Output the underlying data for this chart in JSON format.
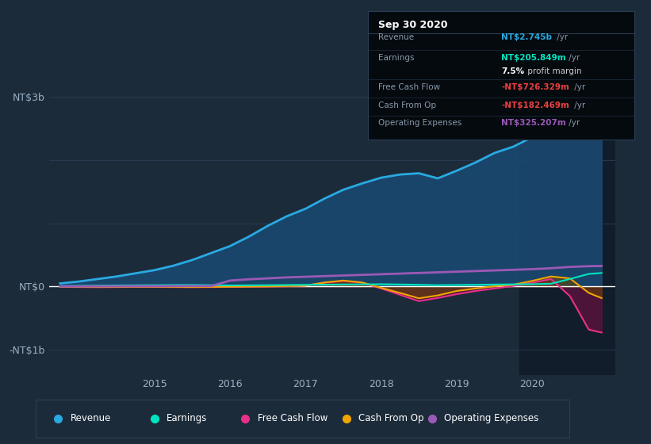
{
  "bg_color": "#1c2b3a",
  "plot_bg_color": "#1c2b3a",
  "grid_color": "#2a3f55",
  "ytick_labels": [
    "NT$3b",
    "NT$0",
    "-NT$1b"
  ],
  "ytick_values": [
    3000000000,
    0,
    -1000000000
  ],
  "xtick_years": [
    2015,
    2016,
    2017,
    2018,
    2019,
    2020
  ],
  "xlim_start": 2013.6,
  "xlim_end": 2021.1,
  "ylim_min": -1400000000,
  "ylim_max": 3300000000,
  "highlight_x_start": 2019.83,
  "highlight_x_end": 2021.1,
  "revenue": {
    "x": [
      2013.75,
      2014.0,
      2014.25,
      2014.5,
      2014.75,
      2015.0,
      2015.25,
      2015.5,
      2015.75,
      2016.0,
      2016.25,
      2016.5,
      2016.75,
      2017.0,
      2017.25,
      2017.5,
      2017.75,
      2018.0,
      2018.25,
      2018.5,
      2018.75,
      2019.0,
      2019.25,
      2019.5,
      2019.75,
      2020.0,
      2020.25,
      2020.5,
      2020.75,
      2020.92
    ],
    "y": [
      50000000,
      80000000,
      120000000,
      160000000,
      210000000,
      260000000,
      330000000,
      420000000,
      530000000,
      640000000,
      790000000,
      960000000,
      1110000000,
      1230000000,
      1390000000,
      1530000000,
      1630000000,
      1720000000,
      1770000000,
      1790000000,
      1710000000,
      1830000000,
      1960000000,
      2110000000,
      2210000000,
      2360000000,
      2550000000,
      2680000000,
      2760000000,
      2980000000
    ],
    "color": "#29aae1",
    "fill_color": "#1a4870",
    "linewidth": 2.0
  },
  "earnings": {
    "x": [
      2013.75,
      2014.0,
      2014.25,
      2014.5,
      2014.75,
      2015.0,
      2015.25,
      2015.5,
      2015.75,
      2016.0,
      2016.25,
      2016.5,
      2016.75,
      2017.0,
      2017.25,
      2017.5,
      2017.75,
      2018.0,
      2018.25,
      2018.5,
      2018.75,
      2019.0,
      2019.25,
      2019.5,
      2019.75,
      2020.0,
      2020.25,
      2020.5,
      2020.75,
      2020.92
    ],
    "y": [
      8000000,
      12000000,
      15000000,
      18000000,
      20000000,
      22000000,
      24000000,
      25000000,
      22000000,
      18000000,
      20000000,
      22000000,
      25000000,
      28000000,
      30000000,
      33000000,
      35000000,
      37000000,
      33000000,
      28000000,
      22000000,
      25000000,
      28000000,
      32000000,
      35000000,
      38000000,
      45000000,
      120000000,
      200000000,
      215000000
    ],
    "color": "#00e5c0",
    "linewidth": 1.5
  },
  "free_cash_flow": {
    "x": [
      2013.75,
      2014.0,
      2014.25,
      2014.5,
      2014.75,
      2015.0,
      2015.25,
      2015.5,
      2015.75,
      2016.0,
      2016.25,
      2016.5,
      2016.75,
      2017.0,
      2017.25,
      2017.5,
      2017.75,
      2018.0,
      2018.25,
      2018.5,
      2018.75,
      2019.0,
      2019.25,
      2019.5,
      2019.75,
      2020.0,
      2020.25,
      2020.5,
      2020.75,
      2020.92
    ],
    "y": [
      -5000000,
      -8000000,
      -10000000,
      -8000000,
      -5000000,
      -6000000,
      -8000000,
      -10000000,
      -8000000,
      -5000000,
      -3000000,
      0,
      5000000,
      15000000,
      60000000,
      90000000,
      60000000,
      -30000000,
      -130000000,
      -230000000,
      -180000000,
      -120000000,
      -70000000,
      -30000000,
      10000000,
      60000000,
      120000000,
      -150000000,
      -680000000,
      -726000000
    ],
    "color": "#e8308a",
    "fill_color": "#6b1040",
    "linewidth": 1.5
  },
  "cash_from_op": {
    "x": [
      2013.75,
      2014.0,
      2014.25,
      2014.5,
      2014.75,
      2015.0,
      2015.25,
      2015.5,
      2015.75,
      2016.0,
      2016.25,
      2016.5,
      2016.75,
      2017.0,
      2017.25,
      2017.5,
      2017.75,
      2018.0,
      2018.25,
      2018.5,
      2018.75,
      2019.0,
      2019.25,
      2019.5,
      2019.75,
      2020.0,
      2020.25,
      2020.5,
      2020.75,
      2020.92
    ],
    "y": [
      -3000000,
      -5000000,
      -6000000,
      -5000000,
      -3000000,
      -3000000,
      -5000000,
      -7000000,
      -5000000,
      -3000000,
      0,
      3000000,
      8000000,
      15000000,
      65000000,
      95000000,
      65000000,
      -20000000,
      -100000000,
      -185000000,
      -140000000,
      -70000000,
      -30000000,
      5000000,
      30000000,
      90000000,
      160000000,
      130000000,
      -100000000,
      -182000000
    ],
    "color": "#f0a500",
    "fill_color": "#6a4500",
    "linewidth": 1.5
  },
  "operating_expenses": {
    "x": [
      2013.75,
      2014.0,
      2014.25,
      2014.5,
      2014.75,
      2015.0,
      2015.25,
      2015.5,
      2015.75,
      2016.0,
      2016.25,
      2016.5,
      2016.75,
      2017.0,
      2017.25,
      2017.5,
      2017.75,
      2018.0,
      2018.25,
      2018.5,
      2018.75,
      2019.0,
      2019.25,
      2019.5,
      2019.75,
      2020.0,
      2020.25,
      2020.5,
      2020.75,
      2020.92
    ],
    "y": [
      2000000,
      3000000,
      4000000,
      5000000,
      6000000,
      7000000,
      8000000,
      9000000,
      9000000,
      95000000,
      115000000,
      130000000,
      145000000,
      155000000,
      165000000,
      175000000,
      185000000,
      195000000,
      205000000,
      215000000,
      225000000,
      235000000,
      245000000,
      255000000,
      265000000,
      275000000,
      290000000,
      310000000,
      322000000,
      325000000
    ],
    "color": "#9b59b6",
    "linewidth": 2.0
  },
  "legend_items": [
    {
      "label": "Revenue",
      "color": "#29aae1"
    },
    {
      "label": "Earnings",
      "color": "#00e5c0"
    },
    {
      "label": "Free Cash Flow",
      "color": "#e8308a"
    },
    {
      "label": "Cash From Op",
      "color": "#f0a500"
    },
    {
      "label": "Operating Expenses",
      "color": "#9b59b6"
    }
  ],
  "infobox": {
    "title": "Sep 30 2020",
    "rows": [
      {
        "label": "Revenue",
        "value": "NT$2.745b",
        "suffix": " /yr",
        "vcolor": "#29aae1"
      },
      {
        "label": "Earnings",
        "value": "NT$205.849m",
        "suffix": " /yr",
        "vcolor": "#00e5c0"
      },
      {
        "label": "",
        "value": "7.5%",
        "suffix": " profit margin",
        "vcolor": "#ffffff"
      },
      {
        "label": "Free Cash Flow",
        "value": "-NT$726.329m",
        "suffix": " /yr",
        "vcolor": "#e84040"
      },
      {
        "label": "Cash From Op",
        "value": "-NT$182.469m",
        "suffix": " /yr",
        "vcolor": "#e84040"
      },
      {
        "label": "Operating Expenses",
        "value": "NT$325.207m",
        "suffix": " /yr",
        "vcolor": "#9b59b6"
      }
    ]
  }
}
